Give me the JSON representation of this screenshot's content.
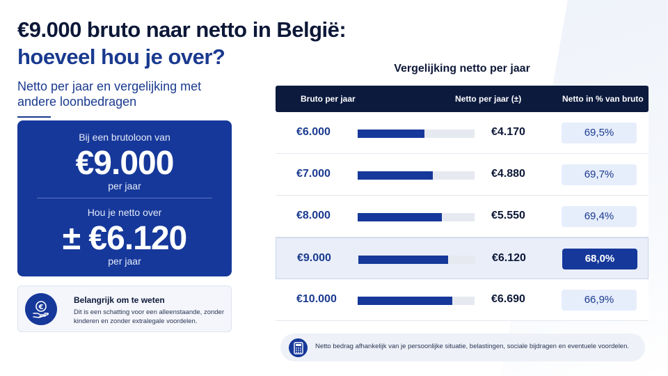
{
  "header": {
    "title_line1": "€9.000 bruto naar netto in België:",
    "title_line2": "hoeveel hou je over?",
    "subtitle": "Netto per jaar en vergelijking met andere loonbedragen"
  },
  "hero": {
    "label_gross": "Bij een brutoloon van",
    "gross_value": "€9.000",
    "gross_period": "per jaar",
    "label_net": "Hou je netto over",
    "net_value": "± €6.120",
    "net_period": "per jaar"
  },
  "info_box": {
    "icon": "euro-hand-icon",
    "title": "Belangrijk om te weten",
    "text": "Dit is een schatting voor een alleenstaande, zonder kinderen en zonder extralegale voordelen."
  },
  "comparison": {
    "title": "Vergelijking netto per jaar",
    "columns": [
      "Bruto per jaar",
      "Netto per jaar (±)",
      "Netto in % van bruto"
    ],
    "rows": [
      {
        "bruto": "€6.000",
        "netto": "€4.170",
        "pct": "69,5%",
        "bar": 0.57,
        "highlight": false
      },
      {
        "bruto": "€7.000",
        "netto": "€4.880",
        "pct": "69,7%",
        "bar": 0.64,
        "highlight": false
      },
      {
        "bruto": "€8.000",
        "netto": "€5.550",
        "pct": "69,4%",
        "bar": 0.72,
        "highlight": false
      },
      {
        "bruto": "€9.000",
        "netto": "€6.120",
        "pct": "68,0%",
        "bar": 0.77,
        "highlight": true
      },
      {
        "bruto": "€10.000",
        "netto": "€6.690",
        "pct": "66,9%",
        "bar": 0.81,
        "highlight": false
      }
    ]
  },
  "note": {
    "icon": "calculator-icon",
    "text": "Netto bedrag afhankelijk van je persoonlijke situatie, belastingen, sociale bijdragen en eventuele voordelen."
  },
  "colors": {
    "primary": "#16389a",
    "dark": "#0c1a3e",
    "light_bg": "#e6edfb"
  }
}
